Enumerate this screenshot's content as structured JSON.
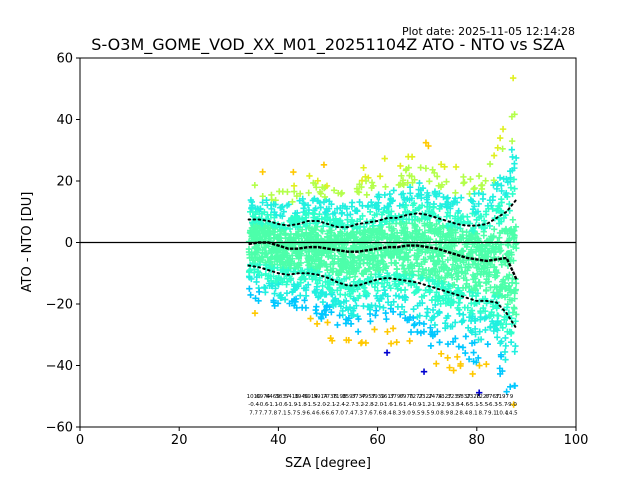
{
  "chart_data": {
    "type": "scatter",
    "title": "S-O3M_GOME_VOD_XX_M01_20251104Z ATO - NTO vs SZA",
    "plot_date": "Plot date: 2025-11-05 12:14:28",
    "xlabel": "SZA [degree]",
    "ylabel": "ATO - NTO [DU]",
    "xlim": [
      0,
      100
    ],
    "ylim": [
      -60,
      60
    ],
    "x_ticks": [
      0,
      20,
      40,
      60,
      80,
      100
    ],
    "y_ticks": [
      -60,
      -40,
      -20,
      0,
      20,
      40,
      60
    ],
    "x_tick_labels": [
      "0",
      "20",
      "40",
      "60",
      "80",
      "100"
    ],
    "y_tick_labels": [
      "−60",
      "−40",
      "−20",
      "0",
      "20",
      "40",
      "60"
    ],
    "reference_line_y": 0,
    "scatter_x_range": [
      34,
      88
    ],
    "point_colors": [
      "#4dffaa",
      "#2effcc",
      "#20f0e0",
      "#00c8ff",
      "#b4ff4b",
      "#e0f020",
      "#ffc800",
      "#0000d0"
    ],
    "median": {
      "x": [
        34,
        36,
        38,
        40,
        42,
        44,
        46,
        48,
        50,
        52,
        54,
        56,
        58,
        60,
        62,
        64,
        66,
        68,
        70,
        72,
        74,
        76,
        78,
        80,
        82,
        84,
        86,
        88
      ],
      "y": [
        -0.5,
        0,
        0,
        -1,
        -2,
        -2,
        -1.5,
        -1.5,
        -2,
        -2.5,
        -3,
        -3,
        -2.5,
        -2,
        -1.5,
        -1.5,
        -1,
        -1,
        -1.5,
        -2,
        -3,
        -4,
        -5,
        -5.5,
        -6,
        -5.5,
        -5,
        -12
      ]
    },
    "upper_band": {
      "x": [
        34,
        36,
        38,
        40,
        42,
        44,
        46,
        48,
        50,
        52,
        54,
        56,
        58,
        60,
        62,
        64,
        66,
        68,
        70,
        72,
        74,
        76,
        78,
        80,
        82,
        84,
        86,
        88
      ],
      "y": [
        7.5,
        7.5,
        7,
        6,
        5.5,
        6,
        7,
        7,
        6,
        5,
        5,
        6,
        6.5,
        7,
        8,
        8,
        9,
        9.5,
        9,
        8,
        7,
        6,
        5.5,
        5.5,
        6,
        8,
        10,
        14
      ]
    },
    "lower_band": {
      "x": [
        34,
        36,
        38,
        40,
        42,
        44,
        46,
        48,
        50,
        52,
        54,
        56,
        58,
        60,
        62,
        64,
        66,
        68,
        70,
        72,
        74,
        76,
        78,
        80,
        82,
        84,
        86,
        88
      ],
      "y": [
        -7.5,
        -8,
        -9,
        -10,
        -10.5,
        -10,
        -10,
        -10.5,
        -11.5,
        -13,
        -14,
        -14,
        -13,
        -12,
        -11.5,
        -12,
        -12.5,
        -13,
        -14,
        -15,
        -16,
        -17,
        -18,
        -19,
        -19,
        -19.5,
        -23,
        -28
      ]
    },
    "count_labels": {
      "rows": [
        [
          "1010",
          "6974",
          "6469",
          "3837",
          "5416",
          "3946",
          "5914",
          "5914",
          "7738",
          "7198",
          "3597",
          "3737",
          "4957",
          "3939",
          "1617",
          "3797",
          "6970",
          "7277",
          "2327",
          "2474",
          "3327",
          "3237",
          "5837",
          "2326",
          "7227",
          "6767",
          "3197",
          "9"
        ],
        [
          "-0.4",
          "-0.6",
          "-1.1",
          "-0.6",
          "-1.9",
          "-1.8",
          "-1.5",
          "-2.0",
          "-2.1",
          "-2.4",
          "-2.7",
          "-3.2",
          "-2.8",
          "-2.0",
          "-1.6",
          "-1.6",
          "-1.4",
          "-0.9",
          "-1.2",
          "-1.9",
          "-2.9",
          "-3.8",
          "-4.6",
          "-5.1",
          "-5.5",
          "-6.3",
          "-5.7",
          "-9.0"
        ],
        [
          "7.7",
          "7.7",
          "7.8",
          "7.1",
          "5.7",
          "5.9",
          "6.4",
          "6.6",
          "6.6",
          "7.0",
          "7.4",
          "7.3",
          "7.6",
          "7.6",
          "8.4",
          "8.3",
          "9.0",
          "9.5",
          "9.5",
          "9.0",
          "8.9",
          "8.2",
          "8.4",
          "8.1",
          "8.7",
          "9.1",
          "10.4",
          "14.5"
        ]
      ]
    }
  }
}
